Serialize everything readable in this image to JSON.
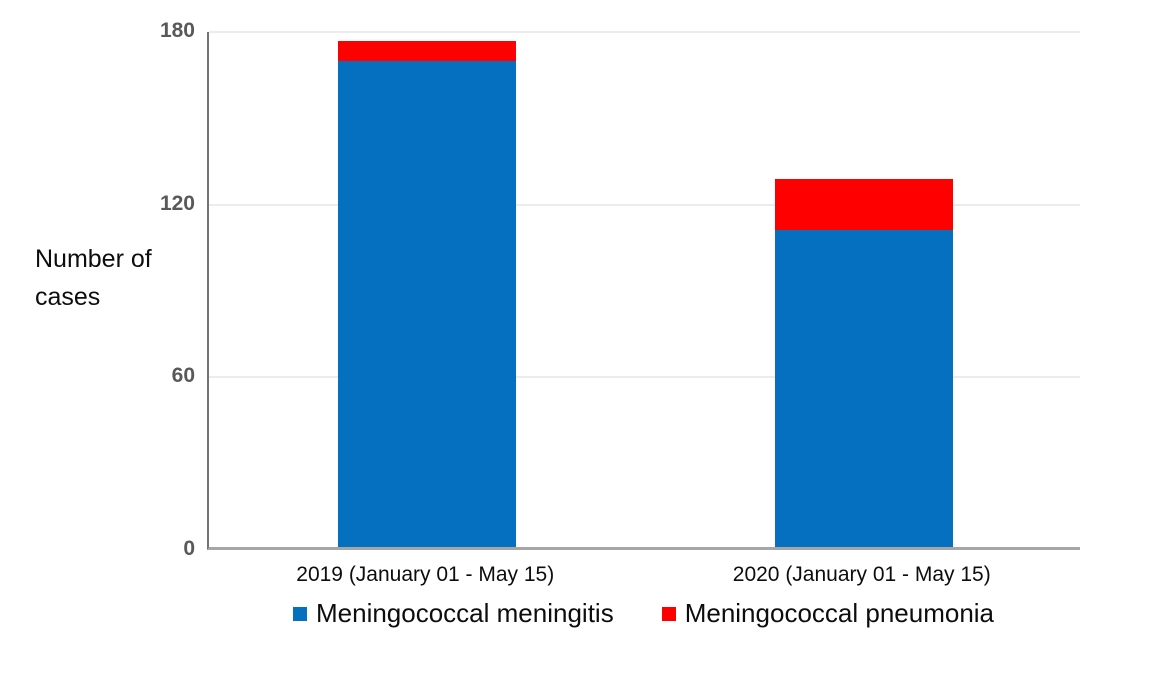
{
  "chart_data": {
    "type": "bar",
    "stacked": true,
    "title": "",
    "xlabel": "",
    "ylabel": "Number of cases",
    "categories": [
      "2019 (January 01 - May 15)",
      "2020 (January 01 - May 15)"
    ],
    "series": [
      {
        "name": "Meningococcal meningitis",
        "color": "#0670c0",
        "values": [
          169,
          110
        ]
      },
      {
        "name": "Meningococcal pneumonia",
        "color": "#fe0000",
        "values": [
          7,
          18
        ]
      }
    ],
    "ylim": [
      0,
      180
    ],
    "yticks": [
      0,
      60,
      120,
      180
    ],
    "grid": true,
    "legend_position": "bottom",
    "colors": {
      "axis_line": "#737373",
      "baseline": "#a6a6a6",
      "gridline": "#ececec",
      "tick_text": "#595959",
      "label_text": "#0d0d0d"
    }
  }
}
